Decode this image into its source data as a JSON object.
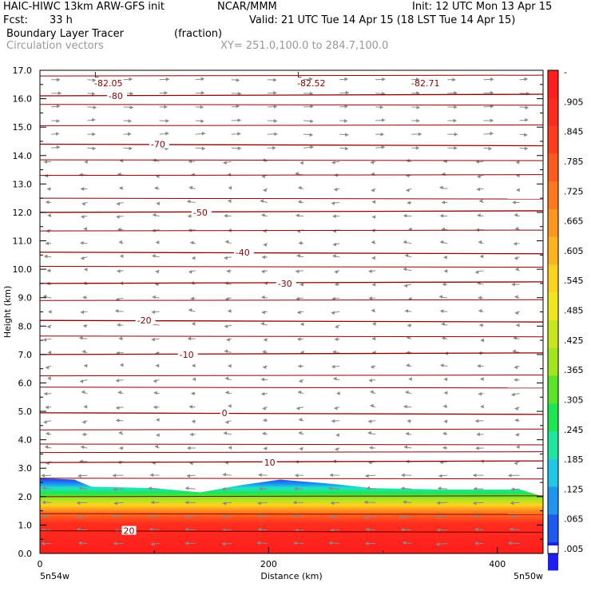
{
  "header": {
    "line1_left": "HAIC-HIWC 13km ARW-GFS init",
    "line1_center": "NCAR/MMM",
    "line1_right": "Init: 12 UTC Mon 13 Apr 15",
    "line2_left": "Fcst:",
    "line2_fcst": "33 h",
    "line2_right": "Valid: 21 UTC Tue 14 Apr 15 (18 LST Tue 14 Apr 15)",
    "field_name": "Boundary Layer Tracer",
    "field_units": "(fraction)",
    "vectors_label": "Circulation vectors",
    "xsection_label": "XY= 251.0,100.0 to 284.7,100.0"
  },
  "chart_data": {
    "type": "heatmap",
    "xlabel": "Distance (km)",
    "ylabel": "Height (km)",
    "xlim": [
      0,
      440
    ],
    "ylim": [
      0,
      17
    ],
    "x_ticks": [
      "0",
      "200",
      "400"
    ],
    "y_ticks": [
      "0.0",
      "1.0",
      "2.0",
      "3.0",
      "4.0",
      "5.0",
      "6.0",
      "7.0",
      "8.0",
      "9.0",
      "10.0",
      "11.0",
      "12.0",
      "13.0",
      "14.0",
      "15.0",
      "16.0",
      "17.0"
    ],
    "x_end_labels": {
      "left": "5n54w",
      "right": "5n50w"
    },
    "colorbar": {
      "labels": [
        "-",
        ".905",
        ".845",
        ".785",
        ".725",
        ".665",
        ".605",
        ".545",
        ".485",
        ".425",
        ".365",
        ".305",
        ".245",
        ".185",
        ".125",
        ".065",
        ".005"
      ],
      "colors": [
        "#ff1e1e",
        "#ff2a1e",
        "#ff3c1e",
        "#ff5a1e",
        "#ff781e",
        "#ff961e",
        "#ffb41e",
        "#ffd21e",
        "#f0e61e",
        "#c8e61e",
        "#a0e61e",
        "#5ae628",
        "#1ee650",
        "#1ee6a0",
        "#1ec8e6",
        "#1e96f0",
        "#1e5af0",
        "#1e1ef0"
      ]
    },
    "tracer_top_km": [
      {
        "x": 0,
        "z": 2.65
      },
      {
        "x": 30,
        "z": 2.6
      },
      {
        "x": 45,
        "z": 2.35
      },
      {
        "x": 100,
        "z": 2.3
      },
      {
        "x": 140,
        "z": 2.15
      },
      {
        "x": 175,
        "z": 2.4
      },
      {
        "x": 210,
        "z": 2.6
      },
      {
        "x": 255,
        "z": 2.45
      },
      {
        "x": 290,
        "z": 2.3
      },
      {
        "x": 350,
        "z": 2.25
      },
      {
        "x": 420,
        "z": 2.25
      },
      {
        "x": 440,
        "z": 2.0
      }
    ],
    "temperature_contours": [
      {
        "label": "-80",
        "z": 16.1
      },
      {
        "label": "-70",
        "z": 14.4
      },
      {
        "label": "-50",
        "z": 12.0
      },
      {
        "label": "-40",
        "z": 10.6
      },
      {
        "label": "-30",
        "z": 9.5
      },
      {
        "label": "-20",
        "z": 8.2
      },
      {
        "label": "-10",
        "z": 7.0
      },
      {
        "label": "0",
        "z": 4.95
      },
      {
        "label": "10",
        "z": 3.2
      },
      {
        "label": "20",
        "z": 0.8
      }
    ],
    "minima": [
      {
        "symbol": "L",
        "value": "-82.05"
      },
      {
        "symbol": "L",
        "value": "-82.52"
      },
      {
        "value": "-82.71"
      }
    ]
  }
}
